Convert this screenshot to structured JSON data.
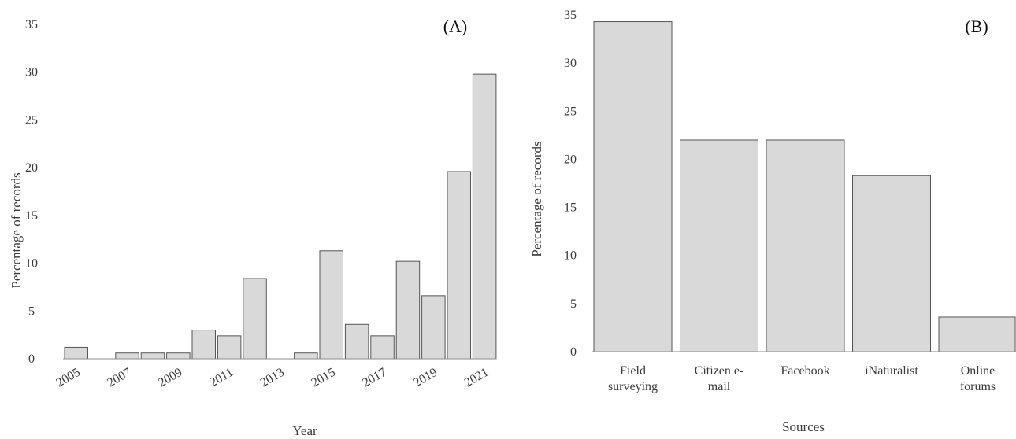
{
  "chart_data": [
    {
      "type": "bar",
      "panel_label": "(A)",
      "categories": [
        "2005",
        "2006",
        "2007",
        "2008",
        "2009",
        "2010",
        "2011",
        "2012",
        "2013",
        "2014",
        "2015",
        "2016",
        "2017",
        "2018",
        "2019",
        "2020",
        "2021"
      ],
      "x_tick_labels": [
        "2005",
        "2007",
        "2009",
        "2011",
        "2013",
        "2015",
        "2017",
        "2019",
        "2021"
      ],
      "values": [
        1.2,
        0,
        0.6,
        0.6,
        0.6,
        3.0,
        2.4,
        8.4,
        0,
        0.6,
        11.3,
        3.6,
        2.4,
        10.2,
        6.6,
        19.6,
        29.8
      ],
      "xlabel": "Year",
      "ylabel": "Percentage of records",
      "ylim": [
        0,
        35
      ],
      "yticks": [
        0,
        5,
        10,
        15,
        20,
        25,
        30,
        35
      ],
      "grid": false
    },
    {
      "type": "bar",
      "panel_label": "(B)",
      "categories": [
        [
          "Field",
          "surveying"
        ],
        [
          "Citizen e-",
          "mail"
        ],
        [
          "Facebook"
        ],
        [
          "iNaturalist"
        ],
        [
          "Online",
          "forums"
        ]
      ],
      "values": [
        34.3,
        22.0,
        22.0,
        18.3,
        3.6
      ],
      "xlabel": "Sources",
      "ylabel": "Percentage of records",
      "ylim": [
        0,
        35
      ],
      "yticks": [
        0,
        5,
        10,
        15,
        20,
        25,
        30,
        35
      ],
      "grid": false
    }
  ]
}
